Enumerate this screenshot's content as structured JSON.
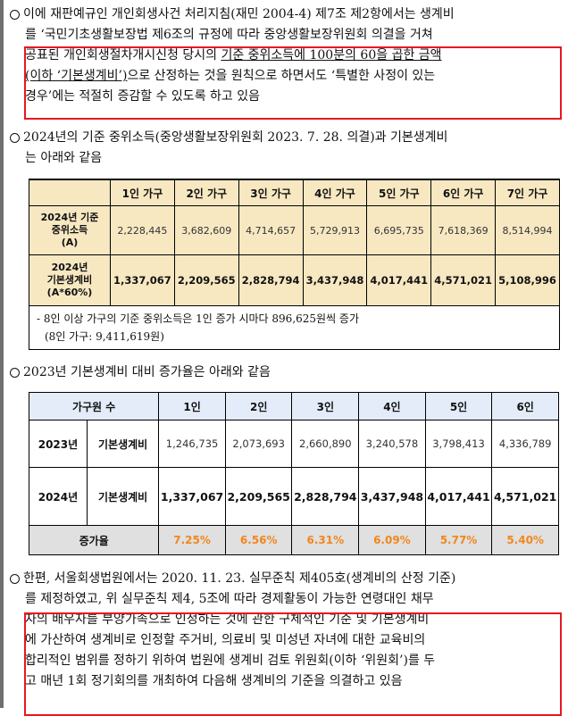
{
  "p1": {
    "lines": [
      "이에 재판예규인 개인회생사건 처리지침(재민 2004-4) 제7조 제2항에서는 생계비",
      "를 ‘국민기초생활보장법 제6조의 규정에 따라 중앙생활보장위원회 의결을 거쳐",
      "공표된 개인회생절차개시신청 당시의 ",
      "(이하 ‘기본생계비’)",
      "으로 산정하는 것을 원칙으로 하면서도 ‘특별한 사정이 있는",
      "경우’에는 적절히 증감할 수 있도록 하고 있음"
    ],
    "underlined": "기준 중위소득에 100분의 60을 곱한 금액"
  },
  "p2": {
    "line1": "2024년의 기준 중위소득(중앙생활보장위원회 2023. 7. 28. 의결)과 기본생계비",
    "line2": "는 아래와 같음"
  },
  "table1": {
    "headers": [
      "1인 가구",
      "2인 가구",
      "3인 가구",
      "4인 가구",
      "5인 가구",
      "6인 가구",
      "7인 가구"
    ],
    "median_label": [
      "2024년 기준",
      "중위소득",
      "(A)"
    ],
    "median": [
      "2,228,445",
      "3,682,609",
      "4,714,657",
      "5,729,913",
      "6,695,735",
      "7,618,369",
      "8,514,994"
    ],
    "base_label": [
      "2024년",
      "기본생계비",
      "(A*60%)"
    ],
    "base": [
      "1,337,067",
      "2,209,565",
      "2,828,794",
      "3,437,948",
      "4,017,441",
      "4,571,021",
      "5,108,996"
    ],
    "note1": "- 8인 이상 가구의 기준 중위소득은 1인 증가 시마다 896,625원씩 증가",
    "note2": "(8인 가구: 9,411,619원)"
  },
  "p3": {
    "text": "2023년 기본생계비 대비 증가율은 아래와 같음"
  },
  "table2": {
    "header_label": "가구원 수",
    "headers": [
      "1인",
      "2인",
      "3인",
      "4인",
      "5인",
      "6인"
    ],
    "row2023_year": "2023년",
    "row2023_label": "기본생계비",
    "row2023": [
      "1,246,735",
      "2,073,693",
      "2,660,890",
      "3,240,578",
      "3,798,413",
      "4,336,789"
    ],
    "row2024_year": "2024년",
    "row2024_label": "기본생계비",
    "row2024": [
      "1,337,067",
      "2,209,565",
      "2,828,794",
      "3,437,948",
      "4,017,441",
      "4,571,021"
    ],
    "rate_label": "증가율",
    "rate": [
      "7.25%",
      "6.56%",
      "6.31%",
      "6.09%",
      "5.77%",
      "5.40%"
    ]
  },
  "p4": {
    "lines": [
      "한편, 서울회생법원에서는 2020. 11. 23. 실무준칙 제405호(생계비의 산정 기준)",
      "를 제정하였고, 위 실무준칙 제4, 5조에 따라 경제활동이 가능한 연령대인 채무",
      "자의 배우자를 부양가족으로 인정하는 것에 관한 구체적인 기준 및 기본생계비",
      "에 가산하여 생계비로 인정할 주거비, 의료비 및 미성년 자녀에 대한 교육비의",
      "합리적인 범위를 정하기 위하여 법원에 생계비 검토 위원회(이하 ‘위원회’)를 두",
      "고 매년 1회 정기회의를 개최하여 다음해 생계비의 기준을 의결하고 있음"
    ]
  },
  "colors": {
    "highlight_box": "#e8171e",
    "table1_fill": "#f7e8c2",
    "table2_header": "#e4ecf9",
    "rate_text": "#f2861f"
  }
}
